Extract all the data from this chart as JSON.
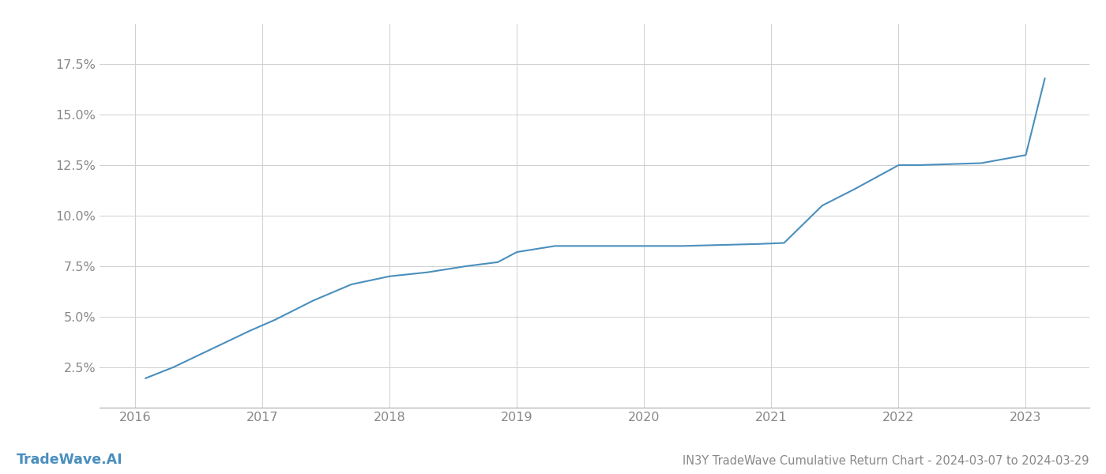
{
  "title": "IN3Y TradeWave Cumulative Return Chart - 2024-03-07 to 2024-03-29",
  "watermark": "TradeWave.AI",
  "line_color": "#4a8fbd",
  "background_color": "#ffffff",
  "grid_color": "#d0d0d0",
  "x_values": [
    2016.08,
    2016.3,
    2016.6,
    2016.9,
    2017.1,
    2017.4,
    2017.7,
    2018.0,
    2018.3,
    2018.6,
    2018.85,
    2019.0,
    2019.15,
    2019.3,
    2019.6,
    2019.9,
    2020.05,
    2020.3,
    2020.6,
    2020.9,
    2021.1,
    2021.4,
    2021.65,
    2022.0,
    2022.15,
    2022.4,
    2022.65,
    2023.0,
    2023.15
  ],
  "y_values": [
    1.95,
    2.5,
    3.4,
    4.3,
    4.85,
    5.8,
    6.6,
    7.0,
    7.2,
    7.5,
    7.7,
    8.2,
    8.35,
    8.5,
    8.5,
    8.5,
    8.5,
    8.5,
    8.55,
    8.6,
    8.65,
    10.5,
    11.3,
    12.5,
    12.5,
    12.55,
    12.6,
    13.0,
    16.8
  ],
  "xlim": [
    2015.72,
    2023.5
  ],
  "ylim": [
    0.5,
    19.5
  ],
  "yticks": [
    2.5,
    5.0,
    7.5,
    10.0,
    12.5,
    15.0,
    17.5
  ],
  "xticks": [
    2016,
    2017,
    2018,
    2019,
    2020,
    2021,
    2022,
    2023
  ],
  "line_width": 1.5,
  "title_fontsize": 10.5,
  "tick_fontsize": 11.5,
  "watermark_fontsize": 12.5
}
